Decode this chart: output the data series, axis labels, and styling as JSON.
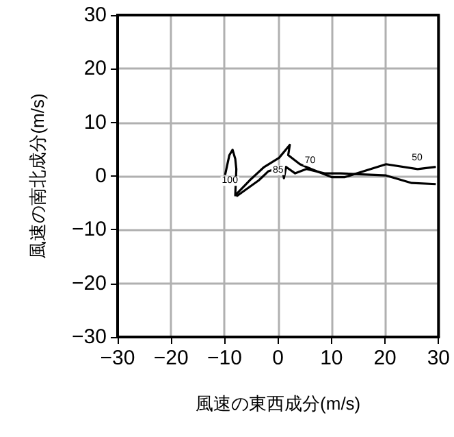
{
  "chart_data": {
    "type": "line",
    "xlabel": "風速の東西成分(m/s)",
    "ylabel": "風速の南北成分(m/s)",
    "xlim": [
      -30,
      30
    ],
    "xticks": [
      -30,
      -20,
      -10,
      0,
      10,
      20,
      30
    ],
    "ylim": [
      -30,
      30
    ],
    "yticks": [
      -30,
      -20,
      -10,
      0,
      10,
      20,
      30
    ],
    "grid": true,
    "marker": "none",
    "line_style": "solid",
    "series": [
      {
        "color": "#000000",
        "x": [
          -9.9,
          -9.1,
          -8.5,
          -8.0,
          -7.8,
          -8.0,
          -5.3,
          -2.7,
          0.2,
          2.2,
          1.9,
          4.1,
          6.2,
          10.0,
          12.5,
          20.2,
          26.1,
          29.5
        ],
        "values": [
          0.2,
          3.9,
          4.9,
          3.2,
          1.3,
          -3.6,
          -0.8,
          1.6,
          3.4,
          5.8,
          3.9,
          2.2,
          1.3,
          -0.2,
          -0.2,
          2.2,
          1.3,
          1.7
        ]
      },
      {
        "color": "#000000",
        "x": [
          -7.8,
          -3.6,
          -1.8,
          0.7,
          1.1,
          1.5,
          3.2,
          5.3,
          8.7,
          11.7,
          20.2,
          25.0,
          29.5
        ],
        "values": [
          -3.8,
          -0.8,
          0.9,
          1.7,
          -0.4,
          1.7,
          0.5,
          1.3,
          0.5,
          0.5,
          0.1,
          -1.3,
          -1.5
        ]
      }
    ],
    "annotations": [
      {
        "text": "100",
        "x": -9,
        "y": -2.6
      },
      {
        "text": "85",
        "x": 0,
        "y": -0.6
      },
      {
        "text": "70",
        "x": 6,
        "y": 1.2
      },
      {
        "text": "50",
        "x": 26,
        "y": 1.6
      }
    ]
  }
}
